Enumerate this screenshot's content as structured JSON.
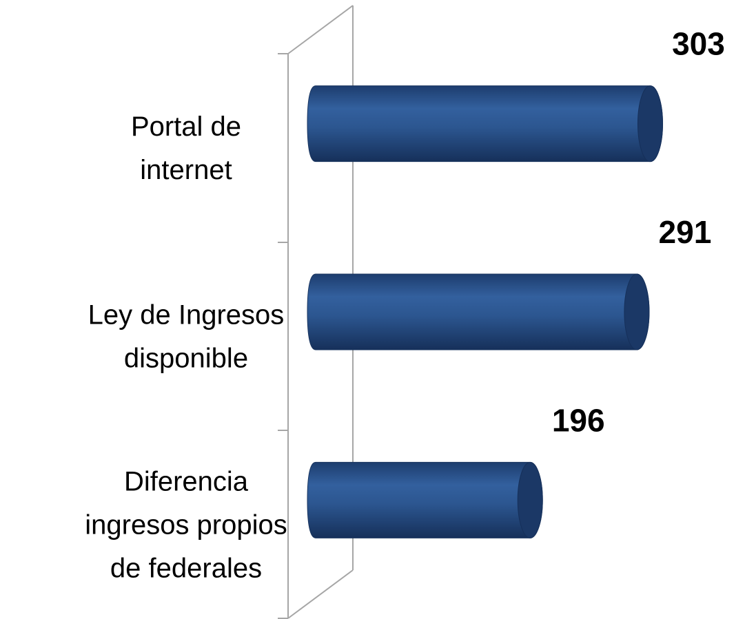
{
  "chart_data": {
    "type": "bar3d-horizontal",
    "categories": [
      "Portal de\ninternet",
      "Ley de Ingresos\ndisponible",
      "Diferencia\ningresos propios\nde federales"
    ],
    "values": [
      303,
      291,
      196
    ],
    "color": "#2b558f",
    "xlim": [
      0,
      350
    ]
  }
}
